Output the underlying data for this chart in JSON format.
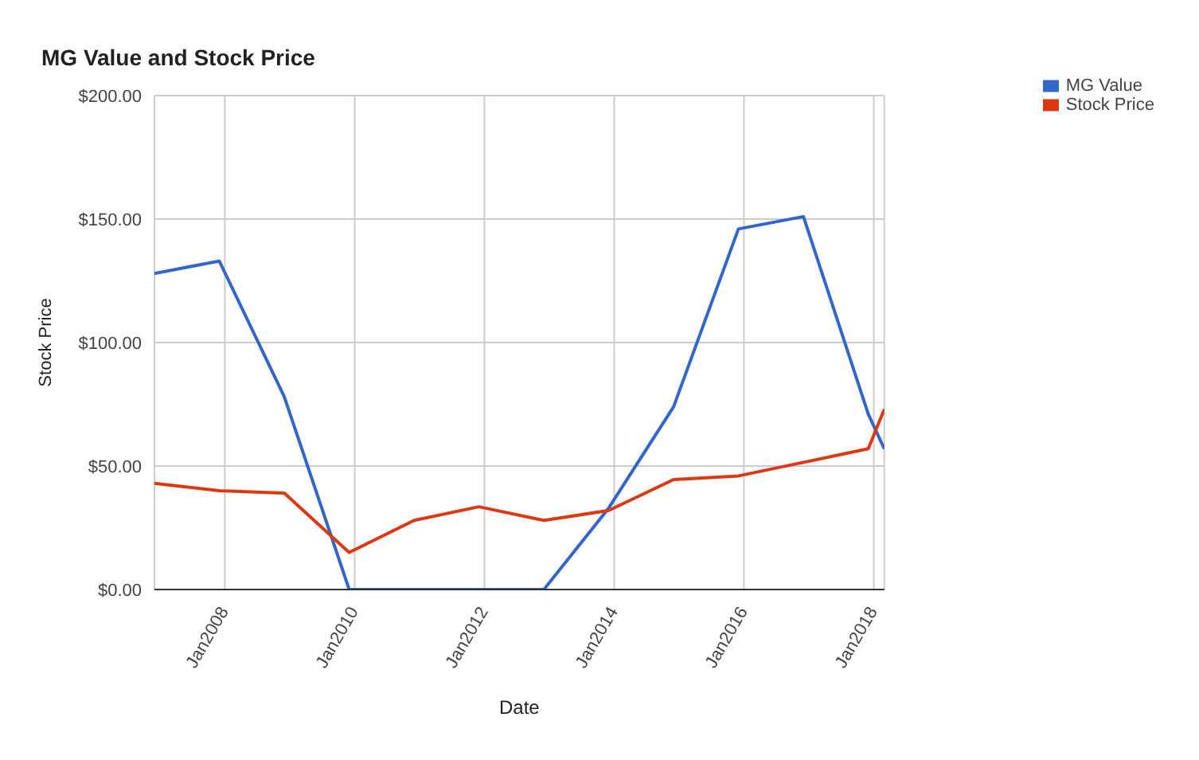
{
  "chart_data": {
    "type": "line",
    "title": "MG Value and Stock Price",
    "xlabel": "Date",
    "ylabel": "Stock Price",
    "x": [
      "2006-12",
      "2007-12",
      "2008-12",
      "2009-12",
      "2010-12",
      "2011-12",
      "2012-12",
      "2013-12",
      "2014-12",
      "2015-12",
      "2016-12",
      "2017-12",
      "2018-03"
    ],
    "series": [
      {
        "name": "MG Value",
        "color": "#3366cc",
        "values": [
          128,
          133,
          78,
          0,
          0,
          0,
          0,
          33,
          74,
          146,
          151,
          71,
          57
        ]
      },
      {
        "name": "Stock Price",
        "color": "#dc3912",
        "values": [
          43,
          40,
          39,
          15,
          28,
          33.5,
          28,
          32,
          44.5,
          46,
          51.5,
          57,
          73
        ]
      }
    ],
    "xlim": [
      "2006-12",
      "2018-03"
    ],
    "xticks": [
      {
        "value": "2008-01",
        "label": "Jan2008"
      },
      {
        "value": "2010-01",
        "label": "Jan2010"
      },
      {
        "value": "2012-01",
        "label": "Jan2012"
      },
      {
        "value": "2014-01",
        "label": "Jan2014"
      },
      {
        "value": "2016-01",
        "label": "Jan2016"
      },
      {
        "value": "2018-01",
        "label": "Jan2018"
      }
    ],
    "ylim": [
      0,
      200
    ],
    "yticks": [
      {
        "value": 0,
        "label": "$0.00"
      },
      {
        "value": 50,
        "label": "$50.00"
      },
      {
        "value": 100,
        "label": "$100.00"
      },
      {
        "value": 150,
        "label": "$150.00"
      },
      {
        "value": 200,
        "label": "$200.00"
      }
    ],
    "grid": true,
    "legend": "top right",
    "marker": "none",
    "line_style": "solid"
  }
}
